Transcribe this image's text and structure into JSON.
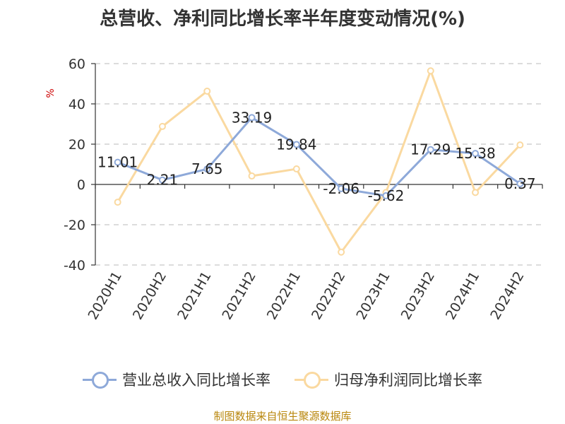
{
  "chart_data": {
    "type": "line",
    "title": "总营收、净利同比增长率半年度变动情况(%)",
    "unit_label": "%",
    "categories": [
      "2020H1",
      "2020H2",
      "2021H1",
      "2021H2",
      "2022H1",
      "2022H2",
      "2023H1",
      "2023H2",
      "2024H1",
      "2024H2"
    ],
    "ylim": [
      -40,
      60
    ],
    "yticks": [
      -40,
      -20,
      0,
      20,
      40,
      60
    ],
    "grid": true,
    "legend_position": "bottom",
    "series": [
      {
        "name": "营业总收入同比增长率",
        "color": "#8ea9d9",
        "values": [
          11.01,
          2.21,
          7.65,
          33.19,
          19.84,
          -2.06,
          -5.62,
          17.29,
          15.38,
          0.37
        ],
        "labels": [
          "11.01",
          "2.21",
          "7.65",
          "33.19",
          "19.84",
          "-2.06",
          "-5.62",
          "17.29",
          "15.38",
          "0.37"
        ],
        "show_labels": true
      },
      {
        "name": "归母净利润同比增长率",
        "color": "#fad9a0",
        "values": [
          -8.8,
          28.8,
          46.3,
          4.2,
          7.7,
          -33.6,
          -4.0,
          56.4,
          -4.0,
          19.6
        ],
        "show_labels": false
      }
    ],
    "source": "制图数据来自恒生聚源数据库"
  }
}
